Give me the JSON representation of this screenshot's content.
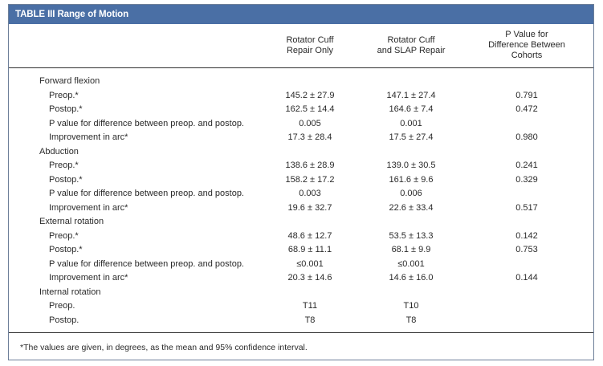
{
  "table": {
    "title": "TABLE III Range of Motion",
    "columns": [
      "Rotator Cuff\nRepair Only",
      "Rotator Cuff\nand SLAP Repair",
      "P Value for\nDifference Between\nCohorts"
    ],
    "rows": [
      {
        "kind": "group",
        "label": "Forward flexion"
      },
      {
        "kind": "sub",
        "label": "Preop.*",
        "c1": "145.2 ± 27.9",
        "c2": "147.1 ± 27.4",
        "c3": "0.791"
      },
      {
        "kind": "sub",
        "label": "Postop.*",
        "c1": "162.5 ± 14.4",
        "c2": "164.6 ± 7.4",
        "c3": "0.472"
      },
      {
        "kind": "sub",
        "label": "P value for difference between preop. and postop.",
        "c1": "0.005",
        "c2": "0.001",
        "c3": ""
      },
      {
        "kind": "sub",
        "label": "Improvement in arc*",
        "c1": "17.3 ± 28.4",
        "c2": "17.5 ± 27.4",
        "c3": "0.980"
      },
      {
        "kind": "group",
        "label": "Abduction"
      },
      {
        "kind": "sub",
        "label": "Preop.*",
        "c1": "138.6 ± 28.9",
        "c2": "139.0 ± 30.5",
        "c3": "0.241"
      },
      {
        "kind": "sub",
        "label": "Postop.*",
        "c1": "158.2 ± 17.2",
        "c2": "161.6 ± 9.6",
        "c3": "0.329"
      },
      {
        "kind": "sub",
        "label": "P value for difference between preop. and postop.",
        "c1": "0.003",
        "c2": "0.006",
        "c3": ""
      },
      {
        "kind": "sub",
        "label": "Improvement in arc*",
        "c1": "19.6 ± 32.7",
        "c2": "22.6 ± 33.4",
        "c3": "0.517"
      },
      {
        "kind": "group",
        "label": "External rotation"
      },
      {
        "kind": "sub",
        "label": "Preop.*",
        "c1": "48.6 ± 12.7",
        "c2": "53.5 ± 13.3",
        "c3": "0.142"
      },
      {
        "kind": "sub",
        "label": "Postop.*",
        "c1": "68.9 ± 11.1",
        "c2": "68.1 ± 9.9",
        "c3": "0.753"
      },
      {
        "kind": "sub",
        "label": "P value for difference between preop. and postop.",
        "c1": "≤0.001",
        "c2": "≤0.001",
        "c3": ""
      },
      {
        "kind": "sub",
        "label": "Improvement in arc*",
        "c1": "20.3 ± 14.6",
        "c2": "14.6 ± 16.0",
        "c3": "0.144"
      },
      {
        "kind": "group",
        "label": "Internal rotation"
      },
      {
        "kind": "sub",
        "label": "Preop.",
        "c1": "T11",
        "c2": "T10",
        "c3": ""
      },
      {
        "kind": "sub",
        "label": "Postop.",
        "c1": "T8",
        "c2": "T8",
        "c3": ""
      }
    ],
    "footnote": "*The values are given, in degrees, as the mean and 95% confidence interval."
  },
  "colors": {
    "title_bar": "#4a6fa5",
    "border": "#6d7f99",
    "rule": "#2f2f2f"
  }
}
